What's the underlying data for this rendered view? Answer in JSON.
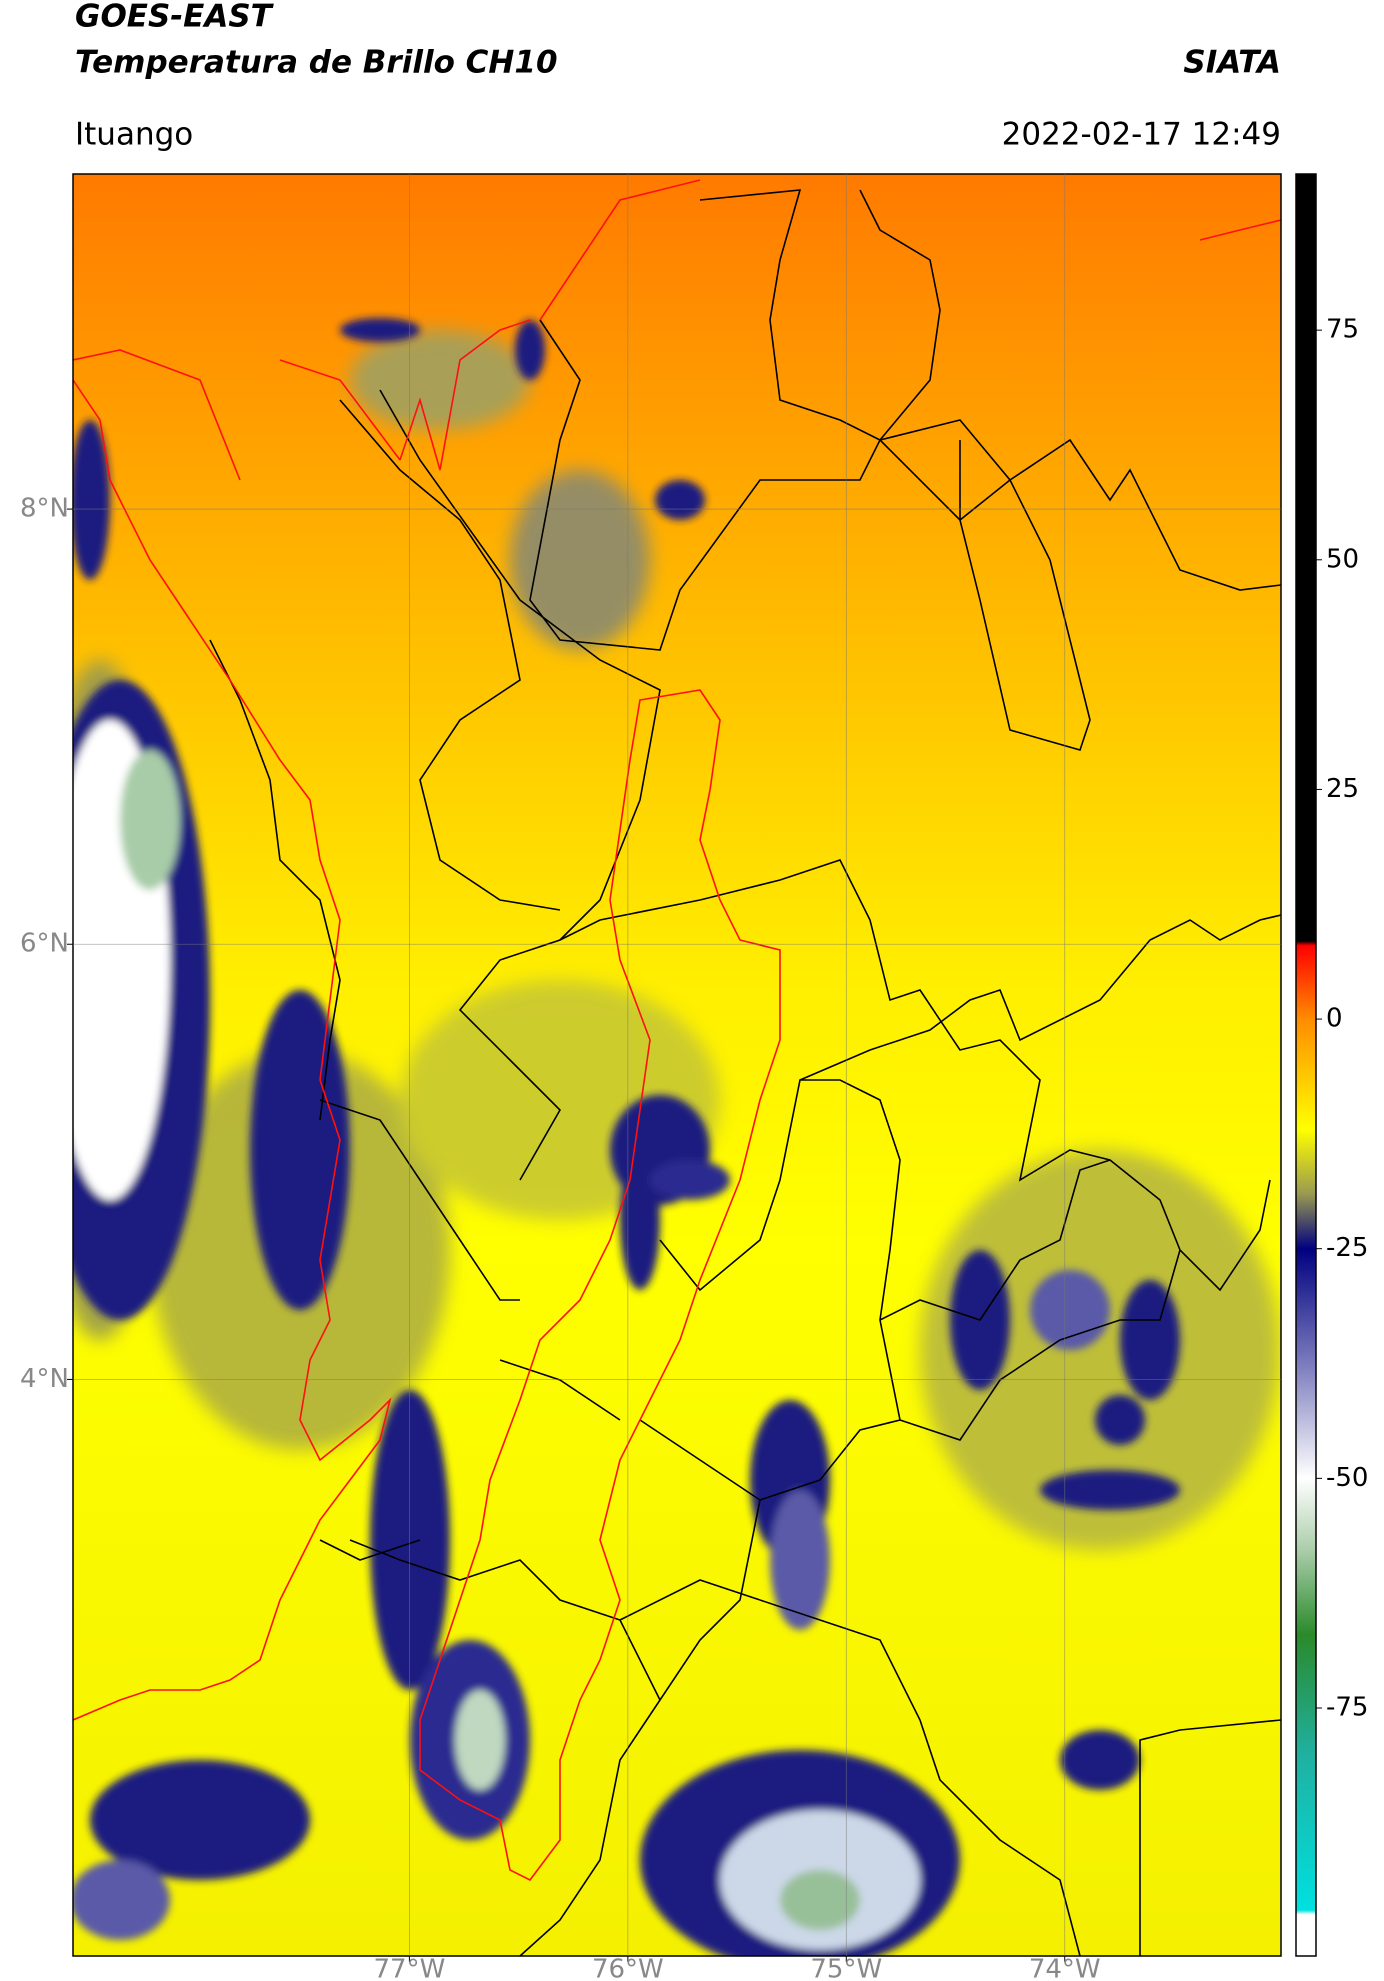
{
  "chart_data": {
    "type": "map",
    "title": [
      "GOES-EAST",
      "Temperatura de Brillo CH10"
    ],
    "subtitle": "Ituango",
    "source": "SIATA",
    "timestamp": "2022-02-17 12:49",
    "xlim": [
      -78.54,
      -73.01
    ],
    "ylim": [
      1.35,
      9.54
    ],
    "xticks": [
      {
        "value": -77,
        "label": "77°W"
      },
      {
        "value": -76,
        "label": "76°W"
      },
      {
        "value": -75,
        "label": "75°W"
      },
      {
        "value": -74,
        "label": "74°W"
      }
    ],
    "yticks": [
      {
        "value": 8,
        "label": "8°N"
      },
      {
        "value": 6,
        "label": "6°N"
      },
      {
        "value": 4,
        "label": "4°N"
      }
    ],
    "grid": true,
    "colorbar": {
      "lim": [
        -102,
        92
      ],
      "ticks": [
        75,
        50,
        25,
        0,
        -25,
        -50,
        -75
      ],
      "stops": [
        {
          "value": 92,
          "color": "#000000"
        },
        {
          "value": 8.5,
          "color": "#000000"
        },
        {
          "value": 8,
          "color": "#ff0000"
        },
        {
          "value": 0,
          "color": "#ff8c00"
        },
        {
          "value": -12,
          "color": "#ffff00"
        },
        {
          "value": -19,
          "color": "#9a9a50"
        },
        {
          "value": -25,
          "color": "#000080"
        },
        {
          "value": -38,
          "color": "#8080c0"
        },
        {
          "value": -50,
          "color": "#ffffff"
        },
        {
          "value": -58,
          "color": "#a8cca8"
        },
        {
          "value": -67,
          "color": "#2a8a2a"
        },
        {
          "value": -80,
          "color": "#20b0a0"
        },
        {
          "value": -97,
          "color": "#00e0e0"
        },
        {
          "value": -97.5,
          "color": "#ffffff"
        },
        {
          "value": -102,
          "color": "#ffffff"
        }
      ]
    }
  }
}
